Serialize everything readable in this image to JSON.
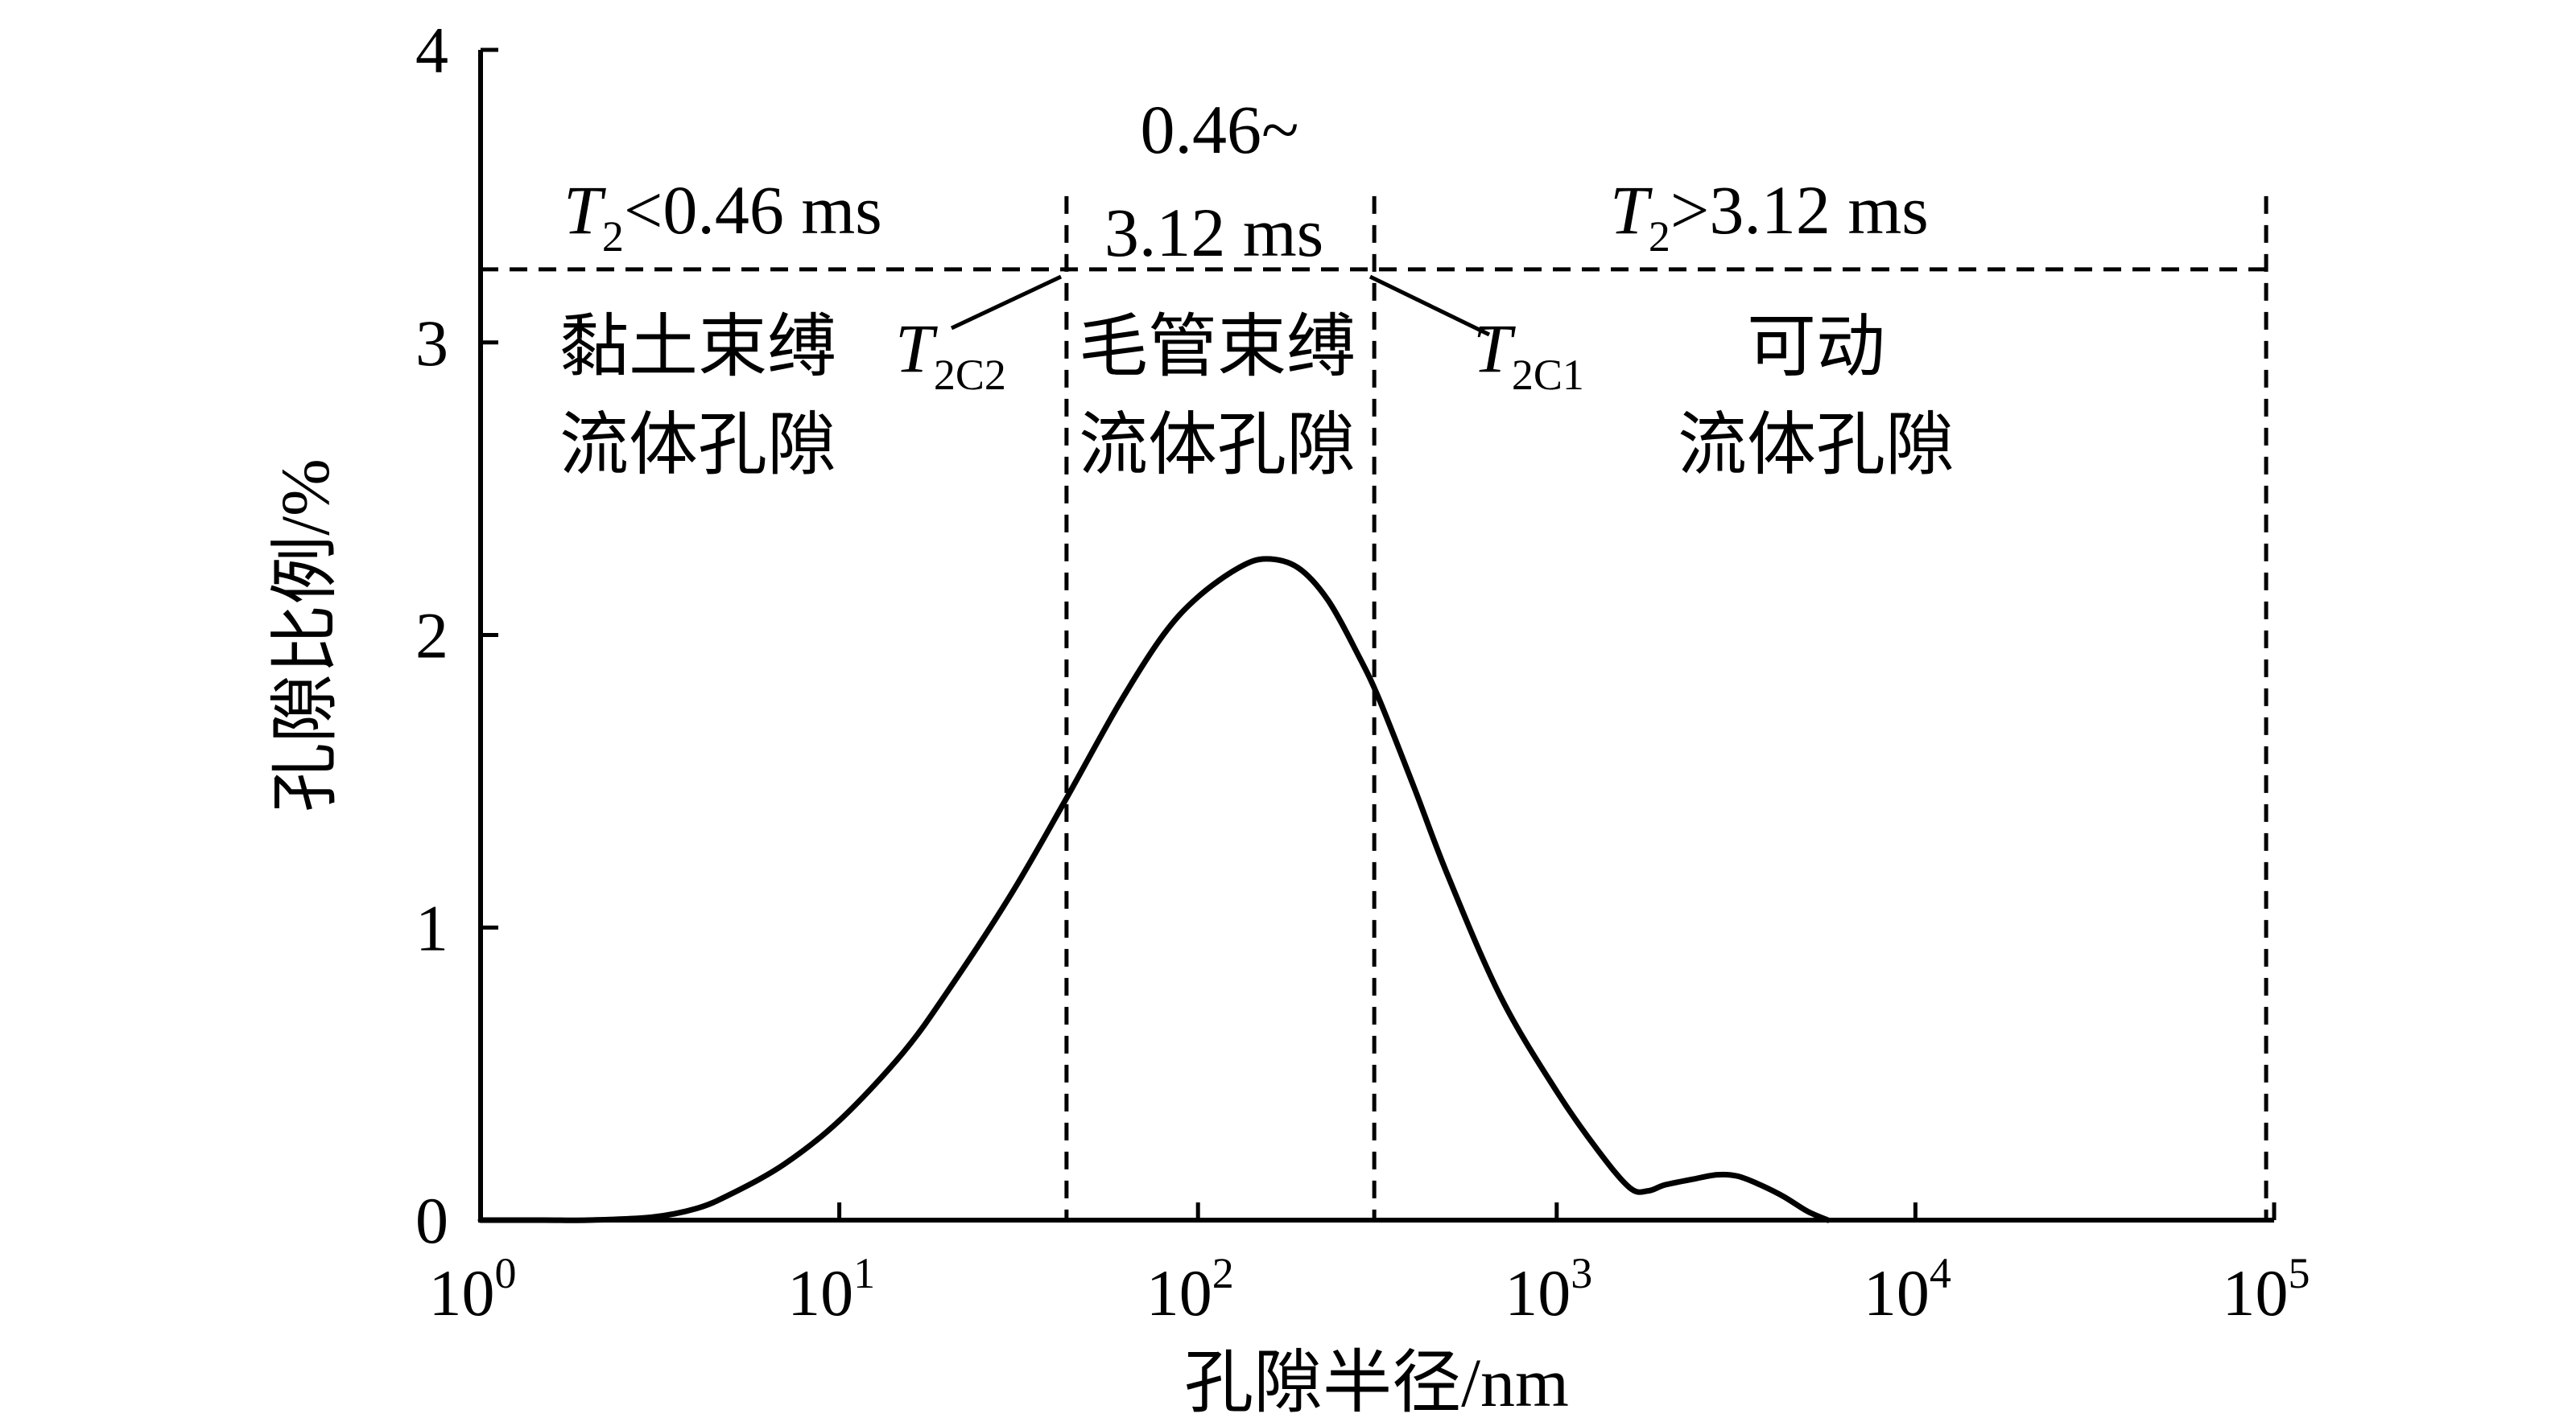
{
  "chart_data": {
    "type": "line",
    "xlabel": "孔隙半径/nm",
    "ylabel": "孔隙比例/%",
    "xscale": "log",
    "xlim": [
      1,
      100000
    ],
    "ylim": [
      0,
      4
    ],
    "x_ticks": [
      {
        "base": "10",
        "exp": "0"
      },
      {
        "base": "10",
        "exp": "1"
      },
      {
        "base": "10",
        "exp": "2"
      },
      {
        "base": "10",
        "exp": "3"
      },
      {
        "base": "10",
        "exp": "4"
      },
      {
        "base": "10",
        "exp": "5"
      }
    ],
    "y_ticks": [
      "0",
      "1",
      "2",
      "3",
      "4"
    ],
    "grid": false,
    "series": [
      {
        "x": [
          1,
          1.5,
          2,
          3,
          4,
          5,
          7,
          10,
          15,
          20,
          30,
          42,
          60,
          80,
          100,
          130,
          155,
          190,
          230,
          280,
          320,
          400,
          500,
          700,
          1000,
          1300,
          1600,
          1800,
          2000,
          2400,
          2800,
          3200,
          3700,
          4300,
          5000,
          5700
        ],
        "y": [
          0.0,
          0.0,
          0.0,
          0.01,
          0.04,
          0.09,
          0.19,
          0.34,
          0.57,
          0.78,
          1.11,
          1.42,
          1.76,
          2.0,
          2.13,
          2.23,
          2.26,
          2.23,
          2.12,
          1.93,
          1.78,
          1.48,
          1.17,
          0.76,
          0.44,
          0.24,
          0.11,
          0.1,
          0.12,
          0.14,
          0.155,
          0.15,
          0.12,
          0.08,
          0.03,
          0.0
        ]
      }
    ],
    "boundaries_nm": [
      43,
      310,
      95000
    ],
    "threshold_y": 3.25,
    "annotations": {
      "left_range": {
        "symbol": "T",
        "sub": "2",
        "text": "<0.46 ms"
      },
      "mid_range_line1": "0.46~",
      "mid_range_line2": "3.12 ms",
      "right_range": {
        "symbol": "T",
        "sub": "2",
        "text": ">3.12 ms"
      },
      "cutoff_left": {
        "symbol": "T",
        "sub": "2C2"
      },
      "cutoff_right": {
        "symbol": "T",
        "sub": "2C1"
      },
      "clay_line1": "黏土束缚",
      "clay_line2": "流体孔隙",
      "capillary_line1": "毛管束缚",
      "capillary_line2": "流体孔隙",
      "movable_line1": "可动",
      "movable_line2": "流体孔隙"
    }
  }
}
